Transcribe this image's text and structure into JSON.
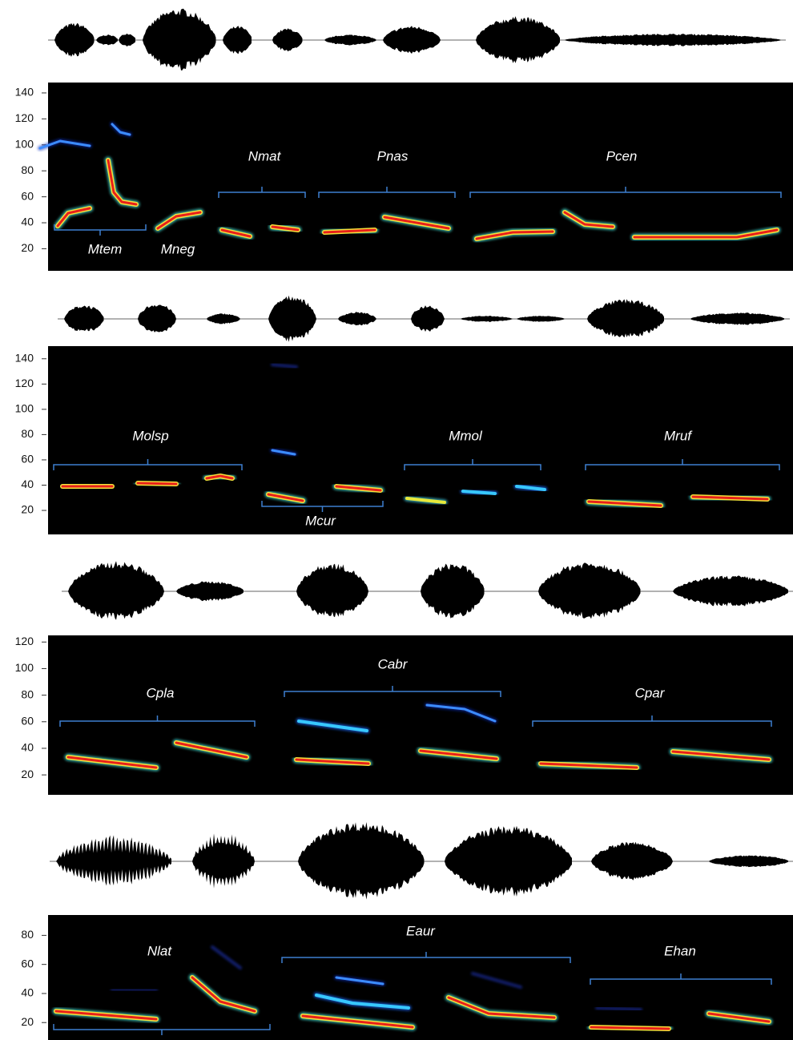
{
  "panels": [
    {
      "ylim": [
        3,
        148
      ],
      "yticks": [
        20,
        40,
        60,
        80,
        100,
        120,
        140
      ],
      "labels": [
        "Mtem",
        "Mneg",
        "Nmat",
        "Pnas",
        "Pcen"
      ]
    },
    {
      "ylim": [
        1,
        150
      ],
      "yticks": [
        20,
        40,
        60,
        80,
        100,
        120,
        140
      ],
      "labels": [
        "Molsp",
        "Mcur",
        "Mmol",
        "Mruf"
      ]
    },
    {
      "ylim": [
        5,
        125
      ],
      "yticks": [
        20,
        40,
        60,
        80,
        100,
        120
      ],
      "labels": [
        "Cpla",
        "Cabr",
        "Cpar"
      ]
    },
    {
      "ylim": [
        8,
        94
      ],
      "yticks": [
        20,
        40,
        60,
        80
      ],
      "labels": [
        "Nlat",
        "Eaur",
        "Ehan"
      ]
    }
  ]
}
